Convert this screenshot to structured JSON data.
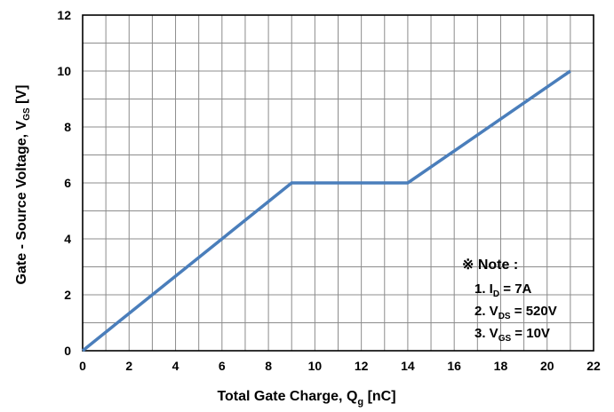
{
  "chart_data": {
    "type": "line",
    "title": "",
    "xlabel": {
      "prefix": "Total Gate Charge, Q",
      "subscript": "g",
      "suffix": " [nC]"
    },
    "ylabel": {
      "prefix": "Gate - Source Voltage, V",
      "subscript": "GS",
      "suffix": " [V]"
    },
    "xlim": [
      0,
      22
    ],
    "ylim": [
      0,
      12
    ],
    "xticks": [
      0,
      2,
      4,
      6,
      8,
      10,
      12,
      14,
      16,
      18,
      20,
      22
    ],
    "yticks": [
      0,
      2,
      4,
      6,
      8,
      10,
      12
    ],
    "grid": true,
    "series": [
      {
        "x": [
          0,
          9,
          14,
          21
        ],
        "y": [
          0,
          6,
          6,
          10
        ],
        "color": "#4a7ebb"
      }
    ],
    "note": {
      "title": "※ Note :",
      "items": [
        {
          "prefix": "1. I",
          "subscript": "D",
          "suffix": " = 7A"
        },
        {
          "prefix": "2. V",
          "subscript": "DS",
          "suffix": " = 520V"
        },
        {
          "prefix": "3. V",
          "subscript": "GS",
          "suffix": " = 10V"
        }
      ]
    }
  }
}
